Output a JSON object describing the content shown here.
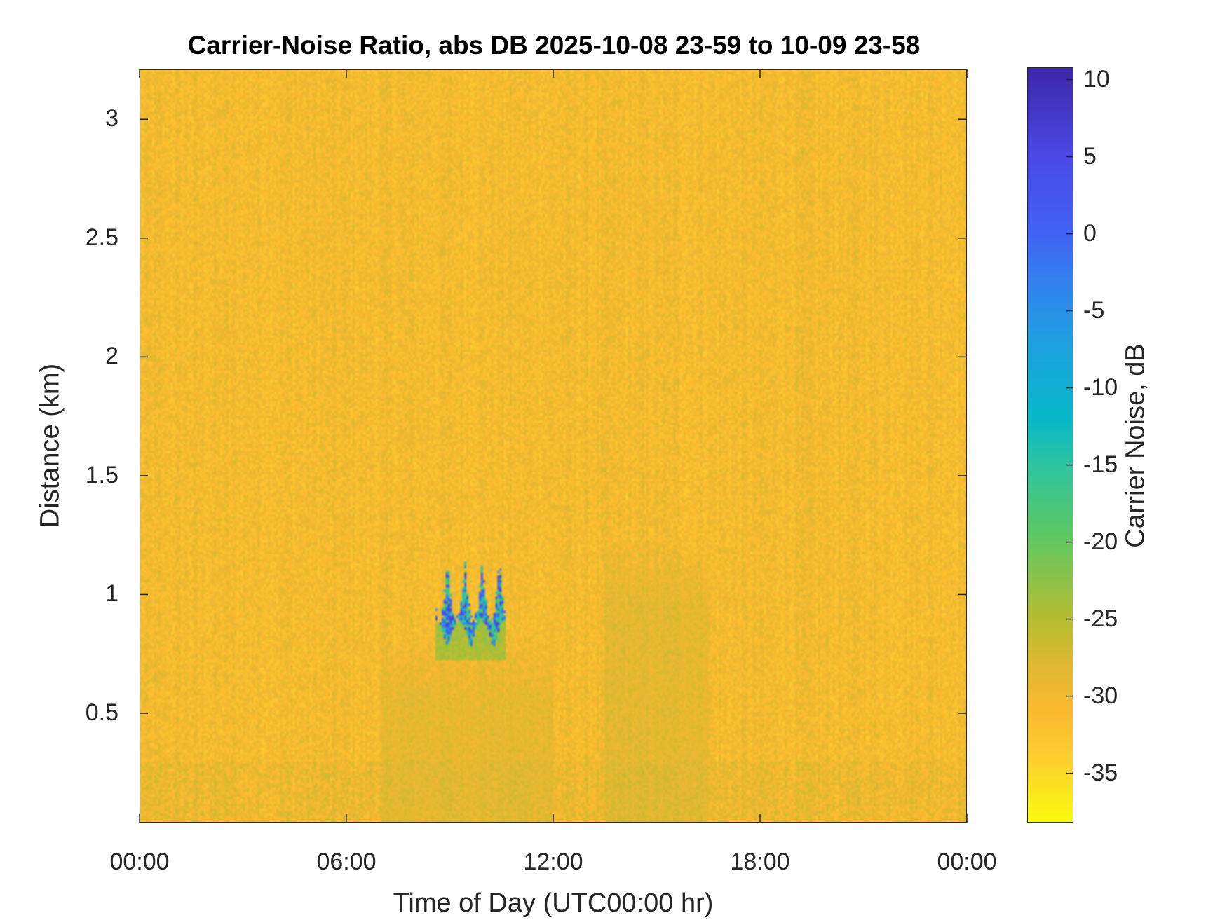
{
  "chart_data": {
    "type": "heatmap",
    "title": "Carrier-Noise Ratio, abs DB 2025-10-08 23-59 to 10-09 23-58",
    "xlabel": "Time of Day (UTC00:00 hr)",
    "ylabel": "Distance (km)",
    "xlim_hours": [
      0,
      24
    ],
    "ylim": [
      0.04,
      3.21
    ],
    "x_ticks": [
      {
        "value": 0,
        "label": "00:00"
      },
      {
        "value": 6,
        "label": "06:00"
      },
      {
        "value": 12,
        "label": "12:00"
      },
      {
        "value": 18,
        "label": "18:00"
      },
      {
        "value": 24,
        "label": "00:00"
      }
    ],
    "y_ticks": [
      {
        "value": 0.5,
        "label": "0.5"
      },
      {
        "value": 1,
        "label": "1"
      },
      {
        "value": 1.5,
        "label": "1.5"
      },
      {
        "value": 2,
        "label": "2"
      },
      {
        "value": 2.5,
        "label": "2.5"
      },
      {
        "value": 3,
        "label": "3"
      }
    ],
    "colorbar": {
      "label": "Carrier Noise, dB",
      "clim": [
        -38.2,
        10.8
      ],
      "ticks": [
        {
          "value": 10,
          "label": "10"
        },
        {
          "value": 5,
          "label": "5"
        },
        {
          "value": 0,
          "label": "0"
        },
        {
          "value": -5,
          "label": "-5"
        },
        {
          "value": -10,
          "label": "-10"
        },
        {
          "value": -15,
          "label": "-15"
        },
        {
          "value": -20,
          "label": "-20"
        },
        {
          "value": -25,
          "label": "-25"
        },
        {
          "value": -30,
          "label": "-30"
        },
        {
          "value": -35,
          "label": "-35"
        }
      ],
      "colormap": [
        "#f9fb0e",
        "#fcce2e",
        "#fbb931",
        "#e0b830",
        "#b5bd2f",
        "#86c34d",
        "#5cc863",
        "#2ec4a0",
        "#05b8c8",
        "#1fa0e0",
        "#3380f0",
        "#4063f5",
        "#4a4ae8",
        "#3e26a8"
      ]
    },
    "background_value_db": -30.5,
    "background_spread_db": 2.5,
    "features": [
      {
        "name": "strong return",
        "time_hours": [
          8.6,
          10.6
        ],
        "distance_km": [
          0.72,
          1.16
        ],
        "peak_db": 8
      },
      {
        "name": "weak near-range enhancement",
        "time_hours": [
          7.0,
          12.0
        ],
        "distance_km": [
          0.04,
          0.85
        ],
        "mean_db": -27
      },
      {
        "name": "weak enhancement afternoon",
        "time_hours": [
          13.5,
          16.5
        ],
        "distance_km": [
          0.04,
          1.25
        ],
        "mean_db": -26.5
      }
    ]
  }
}
